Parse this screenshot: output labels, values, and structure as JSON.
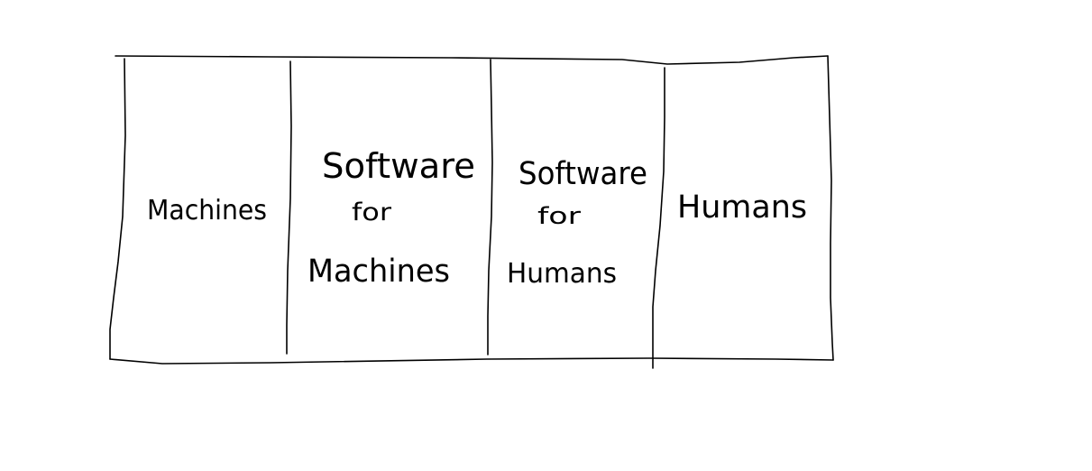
{
  "diagram": {
    "cells": [
      {
        "lines": [
          "Machines"
        ]
      },
      {
        "lines": [
          "Software",
          "for",
          "Machines"
        ]
      },
      {
        "lines": [
          "Software",
          "for",
          "Humans"
        ]
      },
      {
        "lines": [
          "Humans"
        ]
      }
    ],
    "ink_color": "#000000",
    "background_color": "#ffffff"
  }
}
